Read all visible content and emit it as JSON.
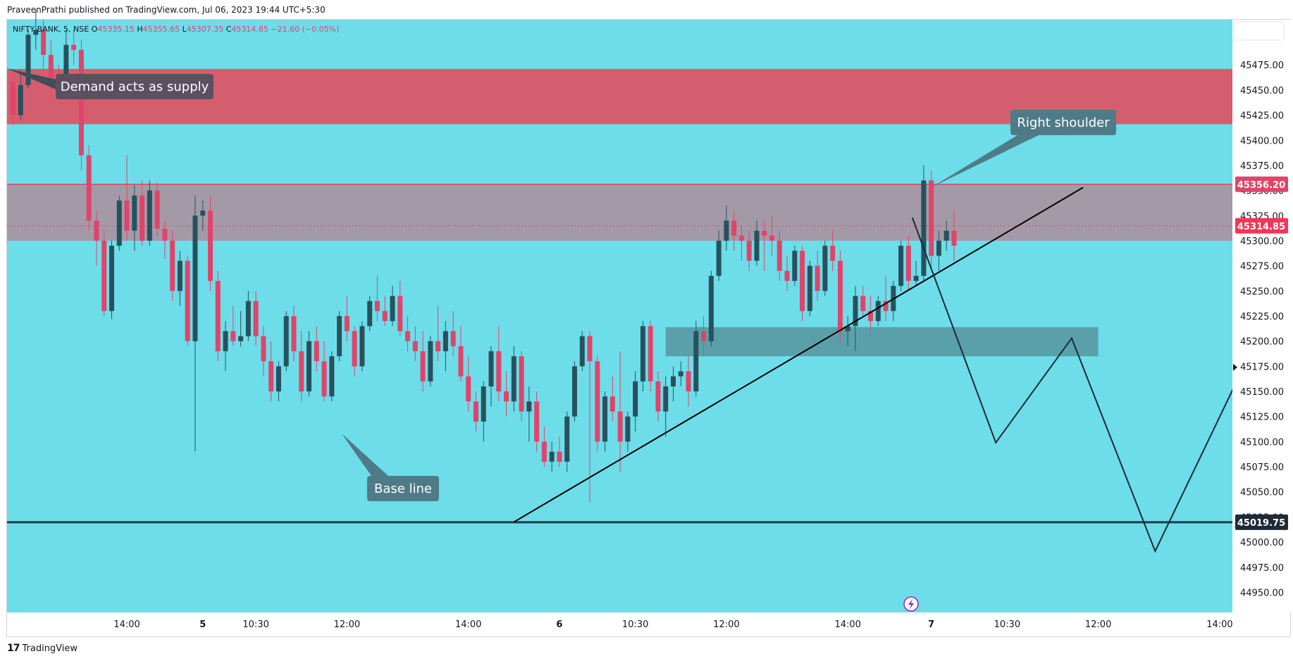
{
  "header": {
    "published_line": "PraveenPrathi published on TradingView.com, Jul 06, 2023 19:44 UTC+5:30"
  },
  "footer": {
    "brand": "TradingView",
    "logo_glyph": "17"
  },
  "colors": {
    "background": "#6ddde9",
    "bull_candle": "#26525e",
    "bear_candle": "#e0446a",
    "supply_zone": "#d55e6e",
    "range_zone": "#a49aa7",
    "demand_zone": "#5aa0ab",
    "base_line": "#1e3c4a",
    "callout": "#5b5060",
    "callout_alt": "#4e7b87"
  },
  "chart_data": {
    "type": "candlestick",
    "symbol_line": {
      "symbol": "NIFTY BANK, 5, NSE",
      "open_label": "O",
      "open": "45335.15",
      "high_label": "H",
      "high": "45355.65",
      "low_label": "L",
      "low": "45307.35",
      "close_label": "C",
      "close": "45314.85",
      "change": "−21.60 (−0.05%)"
    },
    "y_axis": {
      "ticks": [
        "45475.00",
        "45450.00",
        "45425.00",
        "45400.00",
        "45375.00",
        "45350.00",
        "45325.00",
        "45300.00",
        "45275.00",
        "45250.00",
        "45225.00",
        "45200.00",
        "45175.00",
        "45150.00",
        "45125.00",
        "45100.00",
        "45075.00",
        "45050.00",
        "45025.00",
        "45000.00",
        "44975.00",
        "44950.00"
      ],
      "range": [
        44930,
        45520
      ]
    },
    "x_axis": {
      "ticks": [
        {
          "label": "14:00",
          "bar": 15,
          "bold": false
        },
        {
          "label": "5",
          "bar": 25,
          "bold": true
        },
        {
          "label": "10:30",
          "bar": 32,
          "bold": false
        },
        {
          "label": "12:00",
          "bar": 44,
          "bold": false
        },
        {
          "label": "14:00",
          "bar": 60,
          "bold": false
        },
        {
          "label": "6",
          "bar": 72,
          "bold": true
        },
        {
          "label": "10:30",
          "bar": 82,
          "bold": false
        },
        {
          "label": "12:00",
          "bar": 94,
          "bold": false
        },
        {
          "label": "14:00",
          "bar": 110,
          "bold": false
        },
        {
          "label": "7",
          "bar": 121,
          "bold": true
        },
        {
          "label": "10:30",
          "bar": 131,
          "bold": false
        },
        {
          "label": "12:00",
          "bar": 143,
          "bold": false
        },
        {
          "label": "14:00",
          "bar": 159,
          "bold": false
        }
      ]
    },
    "price_labels": [
      {
        "value": "45356.20",
        "price": 45356.2,
        "color": "#e0446a"
      },
      {
        "value": "45314.85",
        "price": 45314.85,
        "color": "#f23659"
      },
      {
        "value": "45019.75",
        "price": 45019.75,
        "color": "#1e2a35"
      }
    ],
    "zones": [
      {
        "name": "supply",
        "from_bar": 0,
        "to_bar": 163,
        "top": 45471,
        "bottom": 45416
      },
      {
        "name": "range",
        "from_bar": 0,
        "to_bar": 163,
        "top": 45356.2,
        "bottom": 45300
      },
      {
        "name": "demand",
        "from_bar": 86,
        "to_bar": 143,
        "top": 45214,
        "bottom": 45185
      }
    ],
    "trend_line": {
      "from": {
        "bar": 66,
        "price": 45020
      },
      "to": {
        "bar": 141,
        "price": 45353
      }
    },
    "base_line": {
      "price": 45019.75
    },
    "projection": [
      {
        "bar": 118.5,
        "price": 45323
      },
      {
        "bar": 129.5,
        "price": 45099
      },
      {
        "bar": 139.5,
        "price": 45203
      },
      {
        "bar": 150.5,
        "price": 44991
      },
      {
        "bar": 161.5,
        "price": 45164
      },
      {
        "bar": 162.5,
        "price": 45126
      }
    ],
    "annotations": [
      {
        "text": "Demand acts as supply",
        "bar": 7,
        "price": 45441
      },
      {
        "text": "Right shoulder",
        "bar": 133,
        "price": 45400
      },
      {
        "text": "Base line",
        "bar": 48,
        "price": 44973
      }
    ],
    "candles": [
      [
        45458,
        45462,
        45415,
        45425
      ],
      [
        45425,
        45470,
        45420,
        45455
      ],
      [
        45455,
        45510,
        45452,
        45505
      ],
      [
        45505,
        45530,
        45490,
        45510
      ],
      [
        45510,
        45520,
        45470,
        45485
      ],
      [
        45485,
        45500,
        45440,
        45460
      ],
      [
        45460,
        45475,
        45445,
        45455
      ],
      [
        45455,
        45510,
        45450,
        45495
      ],
      [
        45495,
        45510,
        45475,
        45490
      ],
      [
        45490,
        45500,
        45370,
        45385
      ],
      [
        45385,
        45395,
        45310,
        45320
      ],
      [
        45320,
        45330,
        45275,
        45300
      ],
      [
        45300,
        45310,
        45225,
        45230
      ],
      [
        45230,
        45300,
        45222,
        45295
      ],
      [
        45295,
        45345,
        45290,
        45340
      ],
      [
        45340,
        45385,
        45300,
        45310
      ],
      [
        45310,
        45355,
        45290,
        45345
      ],
      [
        45345,
        45360,
        45295,
        45300
      ],
      [
        45300,
        45360,
        45295,
        45350
      ],
      [
        45350,
        45358,
        45305,
        45312
      ],
      [
        45312,
        45320,
        45282,
        45300
      ],
      [
        45300,
        45310,
        45240,
        45250
      ],
      [
        45250,
        45290,
        45235,
        45280
      ],
      [
        45280,
        45285,
        45195,
        45200
      ],
      [
        45200,
        45345,
        45090,
        45325
      ],
      [
        45325,
        45340,
        45310,
        45330
      ],
      [
        45330,
        45345,
        45250,
        45260
      ],
      [
        45260,
        45270,
        45180,
        45190
      ],
      [
        45190,
        45220,
        45170,
        45210
      ],
      [
        45210,
        45235,
        45195,
        45200
      ],
      [
        45200,
        45230,
        45195,
        45205
      ],
      [
        45205,
        45250,
        45200,
        45240
      ],
      [
        45240,
        45250,
        45195,
        45205
      ],
      [
        45205,
        45215,
        45165,
        45180
      ],
      [
        45180,
        45200,
        45140,
        45150
      ],
      [
        45150,
        45180,
        45140,
        45175
      ],
      [
        45175,
        45230,
        45170,
        45225
      ],
      [
        45225,
        45235,
        45180,
        45190
      ],
      [
        45190,
        45210,
        45140,
        45150
      ],
      [
        45150,
        45210,
        45145,
        45200
      ],
      [
        45200,
        45215,
        45170,
        45180
      ],
      [
        45180,
        45200,
        45140,
        45145
      ],
      [
        45145,
        45190,
        45140,
        45185
      ],
      [
        45185,
        45230,
        45180,
        45225
      ],
      [
        45225,
        45245,
        45200,
        45210
      ],
      [
        45210,
        45215,
        45165,
        45175
      ],
      [
        45175,
        45220,
        45170,
        45215
      ],
      [
        45215,
        45245,
        45210,
        45240
      ],
      [
        45240,
        45265,
        45220,
        45230
      ],
      [
        45230,
        45245,
        45215,
        45220
      ],
      [
        45220,
        45255,
        45215,
        45245
      ],
      [
        45245,
        45260,
        45205,
        45210
      ],
      [
        45210,
        45225,
        45190,
        45200
      ],
      [
        45200,
        45215,
        45180,
        45190
      ],
      [
        45190,
        45210,
        45150,
        45160
      ],
      [
        45160,
        45205,
        45155,
        45200
      ],
      [
        45200,
        45235,
        45180,
        45190
      ],
      [
        45190,
        45220,
        45170,
        45210
      ],
      [
        45210,
        45230,
        45185,
        45195
      ],
      [
        45195,
        45215,
        45160,
        45165
      ],
      [
        45165,
        45185,
        45130,
        45140
      ],
      [
        45140,
        45150,
        45110,
        45120
      ],
      [
        45120,
        45160,
        45100,
        45155
      ],
      [
        45155,
        45195,
        45135,
        45190
      ],
      [
        45190,
        45215,
        45140,
        45150
      ],
      [
        45150,
        45170,
        45125,
        45140
      ],
      [
        45140,
        45195,
        45130,
        45185
      ],
      [
        45185,
        45190,
        45120,
        45130
      ],
      [
        45130,
        45155,
        45100,
        45140
      ],
      [
        45140,
        45150,
        45090,
        45100
      ],
      [
        45100,
        45115,
        45075,
        45080
      ],
      [
        45080,
        45100,
        45070,
        45090
      ],
      [
        45090,
        45105,
        45075,
        45080
      ],
      [
        45080,
        45130,
        45070,
        45125
      ],
      [
        45125,
        45180,
        45120,
        45175
      ],
      [
        45175,
        45210,
        45170,
        45205
      ],
      [
        45205,
        45210,
        45040,
        45180
      ],
      [
        45180,
        45185,
        45090,
        45100
      ],
      [
        45100,
        45150,
        45090,
        45145
      ],
      [
        45145,
        45165,
        45120,
        45130
      ],
      [
        45130,
        45190,
        45070,
        45100
      ],
      [
        45100,
        45130,
        45090,
        45125
      ],
      [
        45125,
        45170,
        45110,
        45160
      ],
      [
        45160,
        45220,
        45150,
        45215
      ],
      [
        45215,
        45220,
        45150,
        45160
      ],
      [
        45160,
        45170,
        45120,
        45130
      ],
      [
        45130,
        45165,
        45105,
        45155
      ],
      [
        45155,
        45175,
        45140,
        45165
      ],
      [
        45165,
        45180,
        45155,
        45170
      ],
      [
        45170,
        45185,
        45135,
        45150
      ],
      [
        45150,
        45220,
        45145,
        45210
      ],
      [
        45210,
        45225,
        45185,
        45200
      ],
      [
        45200,
        45270,
        45195,
        45265
      ],
      [
        45265,
        45310,
        45260,
        45300
      ],
      [
        45300,
        45335,
        45290,
        45320
      ],
      [
        45320,
        45330,
        45290,
        45305
      ],
      [
        45305,
        45315,
        45280,
        45300
      ],
      [
        45300,
        45310,
        45270,
        45280
      ],
      [
        45280,
        45320,
        45275,
        45310
      ],
      [
        45310,
        45320,
        45270,
        45305
      ],
      [
        45305,
        45325,
        45285,
        45300
      ],
      [
        45300,
        45310,
        45260,
        45270
      ],
      [
        45270,
        45285,
        45250,
        45260
      ],
      [
        45260,
        45295,
        45255,
        45290
      ],
      [
        45290,
        45295,
        45220,
        45230
      ],
      [
        45230,
        45280,
        45225,
        45275
      ],
      [
        45275,
        45290,
        45240,
        45250
      ],
      [
        45250,
        45300,
        45245,
        45295
      ],
      [
        45295,
        45310,
        45270,
        45280
      ],
      [
        45280,
        45290,
        45200,
        45210
      ],
      [
        45210,
        45225,
        45195,
        45215
      ],
      [
        45215,
        45255,
        45190,
        45245
      ],
      [
        45245,
        45255,
        45225,
        45230
      ],
      [
        45230,
        45245,
        45210,
        45220
      ],
      [
        45220,
        45245,
        45215,
        45240
      ],
      [
        45240,
        45265,
        45220,
        45230
      ],
      [
        45230,
        45260,
        45220,
        45255
      ],
      [
        45255,
        45300,
        45250,
        45295
      ],
      [
        45295,
        45305,
        45250,
        45260
      ],
      [
        45260,
        45280,
        45255,
        45265
      ],
      [
        45265,
        45375,
        45260,
        45360
      ],
      [
        45360,
        45370,
        45270,
        45285
      ],
      [
        45285,
        45310,
        45270,
        45300
      ],
      [
        45300,
        45320,
        45290,
        45310
      ],
      [
        45310,
        45330,
        45280,
        45295
      ]
    ]
  }
}
